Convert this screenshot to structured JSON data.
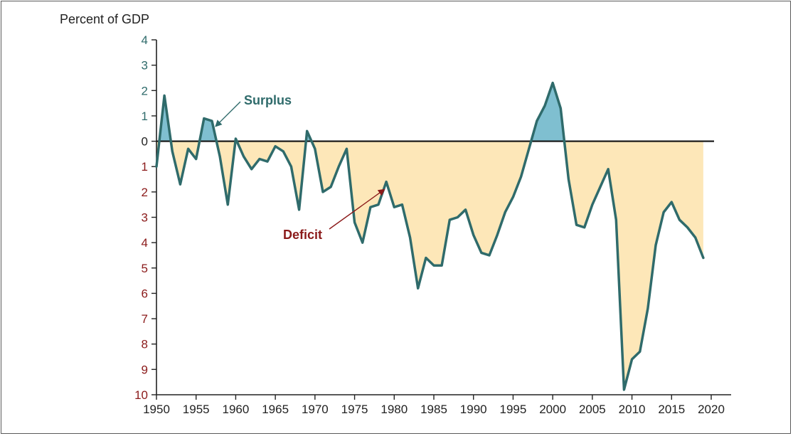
{
  "chart_data": {
    "type": "area",
    "ylabel": "Percent of GDP",
    "y_axis_note": "Values above 0 are surpluses (positive); values below 0 are deficits, tick labels show magnitude",
    "ylim": [
      -10,
      4
    ],
    "xlim": [
      1950,
      2020
    ],
    "x_ticks": [
      1950,
      1955,
      1960,
      1965,
      1970,
      1975,
      1980,
      1985,
      1990,
      1995,
      2000,
      2005,
      2010,
      2015,
      2020
    ],
    "y_ticks": [
      4,
      3,
      2,
      1,
      0,
      -1,
      -2,
      -3,
      -4,
      -5,
      -6,
      -7,
      -8,
      -9,
      -10
    ],
    "y_tick_labels": [
      "4",
      "3",
      "2",
      "1",
      "0",
      "1",
      "2",
      "3",
      "4",
      "5",
      "6",
      "7",
      "8",
      "9",
      "10"
    ],
    "grid": false,
    "series": [
      {
        "x": [
          1950,
          1951,
          1952,
          1953,
          1954,
          1955,
          1956,
          1957,
          1958,
          1959,
          1960,
          1961,
          1962,
          1963,
          1964,
          1965,
          1966,
          1967,
          1968,
          1969,
          1970,
          1971,
          1972,
          1973,
          1974,
          1975,
          1976,
          1977,
          1978,
          1979,
          1980,
          1981,
          1982,
          1983,
          1984,
          1985,
          1986,
          1987,
          1988,
          1989,
          1990,
          1991,
          1992,
          1993,
          1994,
          1995,
          1996,
          1997,
          1998,
          1999,
          2000,
          2001,
          2002,
          2003,
          2004,
          2005,
          2006,
          2007,
          2008,
          2009,
          2010,
          2011,
          2012,
          2013,
          2014,
          2015,
          2016,
          2017,
          2018,
          2019
        ],
        "y": [
          -1.0,
          1.8,
          -0.4,
          -1.7,
          -0.3,
          -0.7,
          0.9,
          0.8,
          -0.6,
          -2.5,
          0.1,
          -0.6,
          -1.1,
          -0.7,
          -0.8,
          -0.2,
          -0.4,
          -1.0,
          -2.7,
          0.4,
          -0.3,
          -2.0,
          -1.8,
          -1.0,
          -0.3,
          -3.2,
          -4.0,
          -2.6,
          -2.5,
          -1.6,
          -2.6,
          -2.5,
          -3.8,
          -5.8,
          -4.6,
          -4.9,
          -4.9,
          -3.1,
          -3.0,
          -2.7,
          -3.7,
          -4.4,
          -4.5,
          -3.7,
          -2.8,
          -2.2,
          -1.4,
          -0.3,
          0.8,
          1.4,
          2.3,
          1.3,
          -1.5,
          -3.3,
          -3.4,
          -2.5,
          -1.8,
          -1.1,
          -3.1,
          -9.8,
          -8.6,
          -8.3,
          -6.6,
          -4.1,
          -2.8,
          -2.4,
          -3.1,
          -3.4,
          -3.8,
          -4.6
        ]
      }
    ],
    "colors": {
      "line": "#2f6b6b",
      "surplus_fill": "#7fbfd0",
      "deficit_fill": "#fde7b8",
      "positive_tick": "#2f6b6b",
      "negative_tick": "#8b1a1a",
      "surplus_label": "#2f6b6b",
      "deficit_label": "#8b1a1a"
    },
    "annotations": [
      {
        "text": "Surplus",
        "points_to_x": 1957.5,
        "points_to_y": 0.6
      },
      {
        "text": "Deficit",
        "points_to_x": 1978,
        "points_to_y": -1.8
      }
    ]
  }
}
